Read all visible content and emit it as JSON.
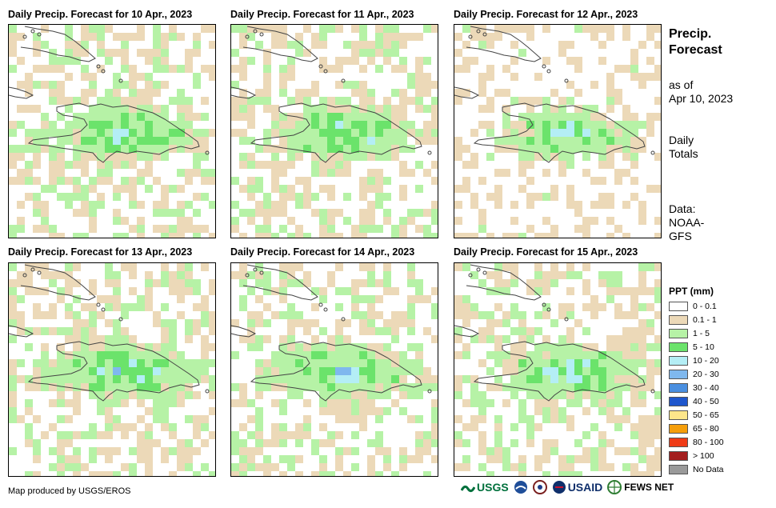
{
  "panels": [
    {
      "title": "Daily Precip. Forecast for 10 Apr., 2023",
      "seed": 11
    },
    {
      "title": "Daily Precip. Forecast for 11 Apr., 2023",
      "seed": 23
    },
    {
      "title": "Daily Precip. Forecast for 12 Apr., 2023",
      "seed": 37
    },
    {
      "title": "Daily Precip. Forecast for 13 Apr., 2023",
      "seed": 41
    },
    {
      "title": "Daily Precip. Forecast for 14 Apr., 2023",
      "seed": 53
    },
    {
      "title": "Daily Precip. Forecast for 15 Apr., 2023",
      "seed": 67
    }
  ],
  "side": {
    "title_line1": "Precip.",
    "title_line2": "Forecast",
    "asof_line1": "as of",
    "asof_line2": "Apr 10, 2023",
    "totals_line1": "Daily",
    "totals_line2": "Totals",
    "data_line1": "Data:",
    "data_line2": "NOAA-",
    "data_line3": "GFS"
  },
  "legend": {
    "title": "PPT (mm)",
    "items": [
      {
        "label": "0 - 0.1",
        "color": "#ffffff"
      },
      {
        "label": "0.1 - 1",
        "color": "#ecd9b8"
      },
      {
        "label": "1 - 5",
        "color": "#b6f2a6"
      },
      {
        "label": "5 - 10",
        "color": "#6be36b"
      },
      {
        "label": "10 - 20",
        "color": "#b4eef5"
      },
      {
        "label": "20 - 30",
        "color": "#7fb8ee"
      },
      {
        "label": "30 - 40",
        "color": "#4a8fe0"
      },
      {
        "label": "40 - 50",
        "color": "#1e56cc"
      },
      {
        "label": "50 - 65",
        "color": "#fde68a"
      },
      {
        "label": "65 - 80",
        "color": "#f59e0b"
      },
      {
        "label": "80 - 100",
        "color": "#ef3b16"
      },
      {
        "label": "> 100",
        "color": "#a31d1d"
      },
      {
        "label": "No Data",
        "color": "#9a9a9a"
      }
    ]
  },
  "footer": {
    "credit": "Map produced by USGS/EROS"
  },
  "logos": {
    "usgs": "USGS",
    "usaid": "USAID",
    "fewsnet": "FEWS NET"
  }
}
